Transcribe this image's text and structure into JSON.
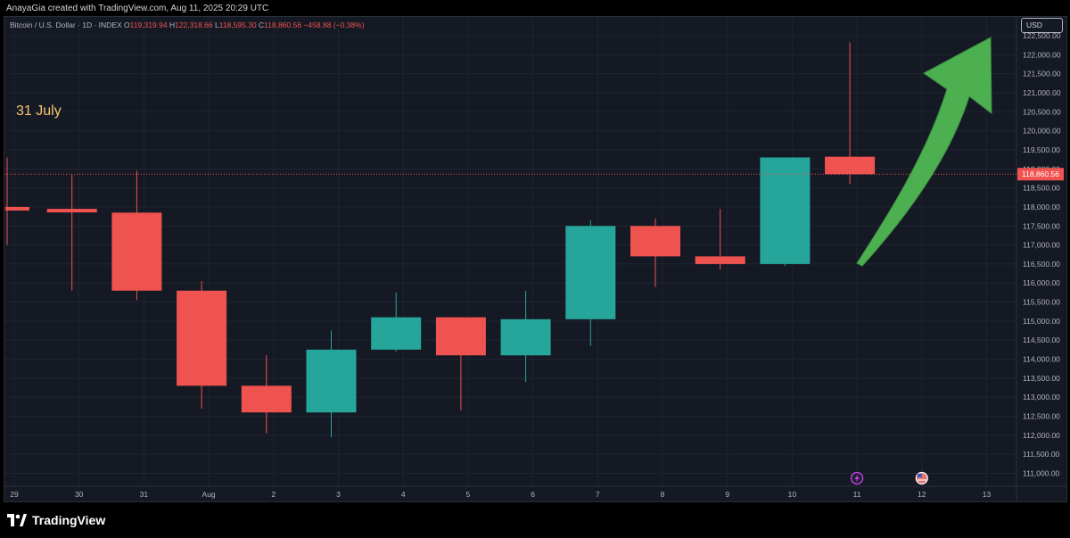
{
  "header": {
    "creator_line": "AnayaGia created with TradingView.com, Aug 11, 2025 20:29 UTC"
  },
  "legend": {
    "symbol": "Bitcoin / U.S. Dollar · 1D · INDEX",
    "o_label": "O",
    "o_value": "119,319.94",
    "h_label": "H",
    "h_value": "122,318.66",
    "l_label": "L",
    "l_value": "118,595.30",
    "c_label": "C",
    "c_value": "118,860.56",
    "change": "−458.88 (−0.38%)"
  },
  "annotation": "31 July",
  "currency": "USD",
  "brand": "TradingView",
  "colors": {
    "up": "#26a69a",
    "down": "#ef5350",
    "background": "#151924",
    "grid": "#1f2430",
    "arrow": "#4caf50",
    "price_tag": "#f05350"
  },
  "chart_data": {
    "type": "candlestick",
    "title": "",
    "xlabel": "",
    "ylabel": "",
    "ylim": [
      110500,
      123000
    ],
    "y_ticks": [
      "111,000.00",
      "111,500.00",
      "112,000.00",
      "112,500.00",
      "113,000.00",
      "113,500.00",
      "114,000.00",
      "114,500.00",
      "115,000.00",
      "115,500.00",
      "116,000.00",
      "116,500.00",
      "117,000.00",
      "117,500.00",
      "118,000.00",
      "118,500.00",
      "119,000.00",
      "119,500.00",
      "120,000.00",
      "120,500.00",
      "121,000.00",
      "121,500.00",
      "122,000.00",
      "122,500.00",
      "123,000.00"
    ],
    "x_ticks": [
      "29",
      "30",
      "31",
      "Aug",
      "2",
      "3",
      "4",
      "5",
      "6",
      "7",
      "8",
      "9",
      "10",
      "11",
      "12",
      "13"
    ],
    "current_price": "118,860.56",
    "candles": [
      {
        "date": "29",
        "open": 118000,
        "high": 119300,
        "low": 117000,
        "close": 117950
      },
      {
        "date": "30",
        "open": 117950,
        "high": 118850,
        "low": 115800,
        "close": 117900
      },
      {
        "date": "31",
        "open": 117850,
        "high": 118950,
        "low": 115550,
        "close": 115800
      },
      {
        "date": "Aug",
        "open": 115800,
        "high": 116050,
        "low": 112700,
        "close": 113300
      },
      {
        "date": "2",
        "open": 113300,
        "high": 114100,
        "low": 112050,
        "close": 112600
      },
      {
        "date": "3",
        "open": 112600,
        "high": 114750,
        "low": 111950,
        "close": 114250
      },
      {
        "date": "4",
        "open": 114250,
        "high": 115750,
        "low": 114200,
        "close": 115100
      },
      {
        "date": "5",
        "open": 115100,
        "high": 115100,
        "low": 112650,
        "close": 114100
      },
      {
        "date": "6",
        "open": 114100,
        "high": 115800,
        "low": 113400,
        "close": 115050
      },
      {
        "date": "7",
        "open": 115050,
        "high": 117650,
        "low": 114350,
        "close": 117500
      },
      {
        "date": "8",
        "open": 117500,
        "high": 117700,
        "low": 115900,
        "close": 116700
      },
      {
        "date": "9",
        "open": 116700,
        "high": 117950,
        "low": 116350,
        "close": 116500
      },
      {
        "date": "10",
        "open": 116500,
        "high": 119300,
        "low": 116450,
        "close": 119300
      },
      {
        "date": "11",
        "open": 119320,
        "high": 122320,
        "low": 118600,
        "close": 118860
      }
    ]
  }
}
